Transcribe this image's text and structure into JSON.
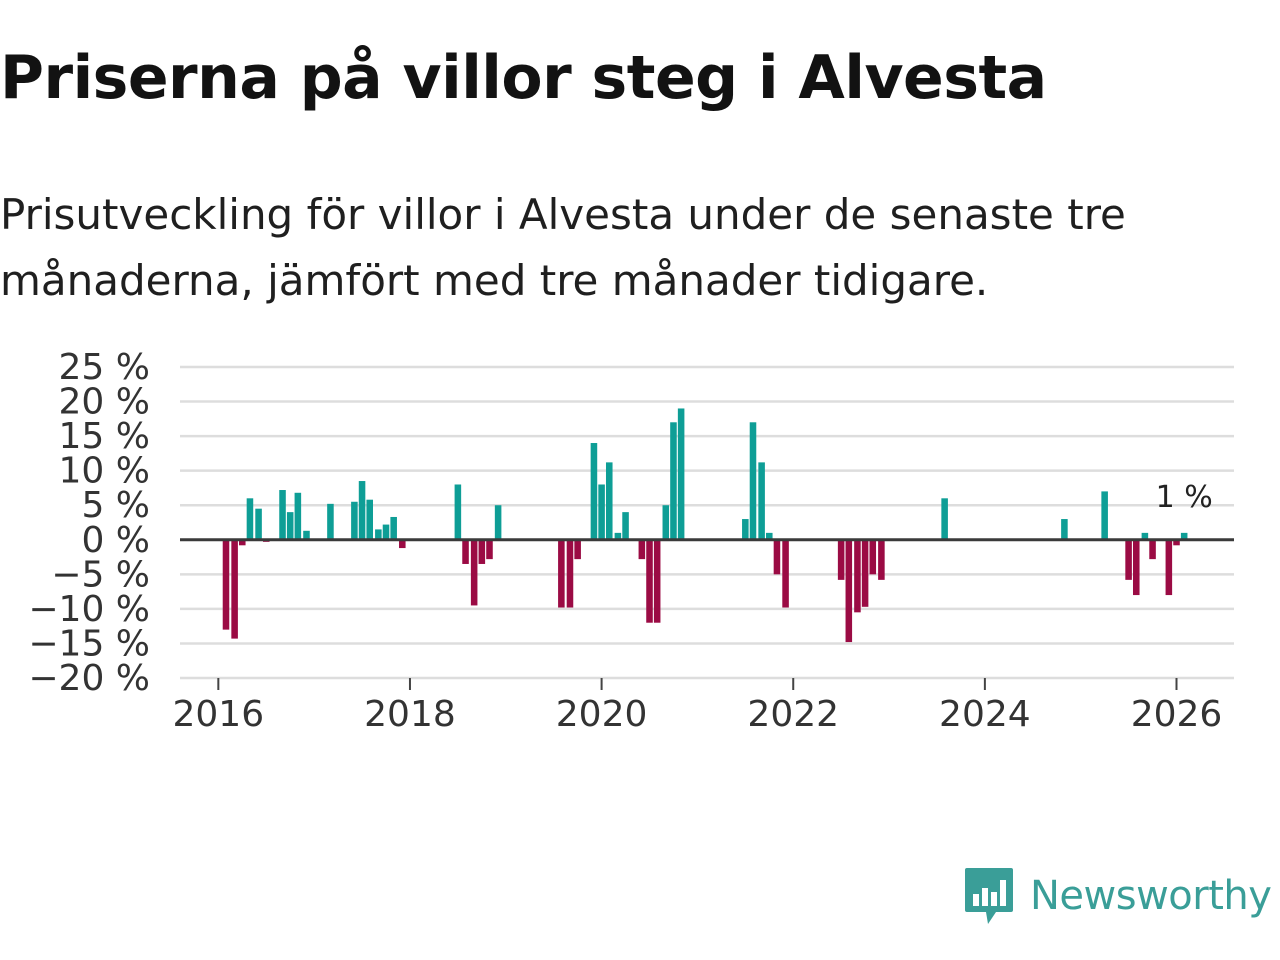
{
  "header": {
    "title": "Priserna på villor steg i Alvesta",
    "subtitle": "Prisutveckling för villor i Alvesta under de senaste tre månaderna, jämfört med tre månader tidigare."
  },
  "brand": {
    "name": "Newsworthy"
  },
  "colors": {
    "positive": "#0e9e96",
    "negative": "#9b0b44",
    "grid": "#dddddd",
    "zero": "#3a3a3a",
    "brand": "#3a9e98"
  },
  "chart_data": {
    "type": "bar",
    "title": "Priserna på villor steg i Alvesta",
    "xlabel": "",
    "ylabel": "",
    "ylim": [
      -20,
      25
    ],
    "xlim": [
      2015.6,
      2026.6
    ],
    "y_ticks": [
      25,
      20,
      15,
      10,
      5,
      0,
      -5,
      -10,
      -15,
      -20
    ],
    "y_tick_labels": [
      "25 %",
      "20 %",
      "15 %",
      "10 %",
      "5 %",
      "0 %",
      "−5 %",
      "−10 %",
      "−15 %",
      "−20 %"
    ],
    "x_ticks": [
      2016,
      2018,
      2020,
      2022,
      2024,
      2026
    ],
    "x_tick_labels": [
      "2016",
      "2018",
      "2020",
      "2022",
      "2024",
      "2026"
    ],
    "grid": true,
    "annotation": {
      "text": "1 %",
      "x": 2026.08,
      "y": 1
    },
    "x": [
      2016.08,
      2016.17,
      2016.25,
      2016.33,
      2016.42,
      2016.5,
      2016.67,
      2016.75,
      2016.83,
      2016.92,
      2017.17,
      2017.42,
      2017.5,
      2017.58,
      2017.67,
      2017.75,
      2017.83,
      2017.92,
      2018.5,
      2018.58,
      2018.67,
      2018.75,
      2018.83,
      2018.92,
      2019.58,
      2019.67,
      2019.75,
      2019.92,
      2020.0,
      2020.08,
      2020.17,
      2020.25,
      2020.42,
      2020.5,
      2020.58,
      2020.67,
      2020.75,
      2020.83,
      2021.5,
      2021.58,
      2021.67,
      2021.75,
      2021.83,
      2021.92,
      2022.5,
      2022.58,
      2022.67,
      2022.75,
      2022.83,
      2022.92,
      2023.58,
      2024.83,
      2025.25,
      2025.5,
      2025.58,
      2025.67,
      2025.75,
      2025.92,
      2026.0,
      2026.08
    ],
    "values": [
      -13,
      -14.3,
      -0.8,
      6,
      4.5,
      -0.3,
      7.2,
      4,
      6.8,
      1.3,
      5.2,
      5.5,
      8.5,
      5.8,
      1.5,
      2.2,
      3.3,
      -1.2,
      8,
      -3.5,
      -9.5,
      -3.5,
      -2.8,
      5,
      -9.8,
      -9.8,
      -2.8,
      14,
      8,
      11.2,
      1,
      4,
      -2.8,
      -12,
      -12,
      5,
      17,
      19,
      3,
      17,
      11.2,
      1,
      -5,
      -9.8,
      -5.8,
      -14.8,
      -10.5,
      -9.7,
      -5,
      -5.8,
      6,
      3,
      7,
      -5.8,
      -8,
      1,
      -2.8,
      -8,
      -0.8,
      1
    ]
  }
}
